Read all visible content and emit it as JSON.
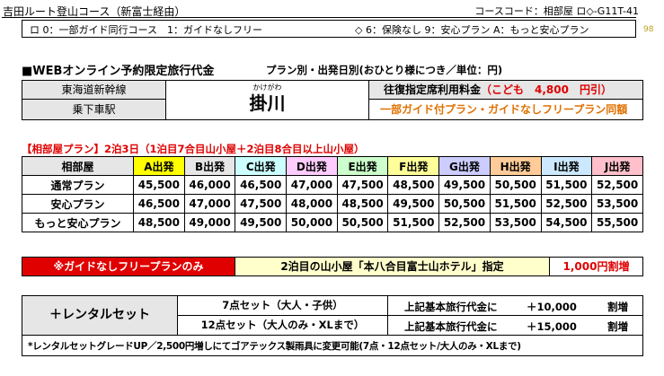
{
  "header": {
    "route_title": "吉田ルート登山コース（新富士経由）",
    "course_code": "コースコード：相部屋 ロ◇-G11T-41",
    "option_left": "ロ 0：一部ガイド同行コース　1：ガイドなしフリー",
    "option_right": "◇ 6：保険なし 9：安心プラン A：もっと安心プラン",
    "side_number": "98"
  },
  "section": {
    "title": "■WEBオンライン予約限定旅行代金",
    "subtitle": "プラン別・出発日別(おひとり様につき／単位：円)"
  },
  "station": {
    "line_label": "東海道新幹線",
    "board_label": "乗下車駅",
    "station_ruby": "かけがわ",
    "station_name": "掛川",
    "fare_label": "往復指定席利用料金",
    "child_fare": "（こども　4,800　円引）",
    "plan_note": "一部ガイド付プラン・ガイドなしフリープラン同額"
  },
  "table": {
    "caption": "【相部屋プラン】2泊3日（1泊目7合目山小屋＋2泊目8合目以上山小屋）",
    "corner": "相部屋",
    "columns": [
      {
        "label": "A出発",
        "color": "#ffff00"
      },
      {
        "label": "B出発",
        "color": "#e6e6e6"
      },
      {
        "label": "C出発",
        "color": "#ccffff"
      },
      {
        "label": "D出発",
        "color": "#ffccff"
      },
      {
        "label": "E出発",
        "color": "#ccffcc"
      },
      {
        "label": "F出発",
        "color": "#ffff99"
      },
      {
        "label": "G出発",
        "color": "#ccccff"
      },
      {
        "label": "H出発",
        "color": "#ffcc99"
      },
      {
        "label": "I出発",
        "color": "#cce8ff"
      },
      {
        "label": "J出発",
        "color": "#ffc0cb"
      }
    ],
    "rows": [
      {
        "label": "通常プラン",
        "values": [
          "45,500",
          "46,000",
          "46,500",
          "47,000",
          "47,500",
          "48,500",
          "49,500",
          "50,500",
          "51,500",
          "52,500"
        ]
      },
      {
        "label": "安心プラン",
        "values": [
          "46,500",
          "47,000",
          "47,500",
          "48,000",
          "48,500",
          "49,500",
          "50,500",
          "51,500",
          "52,500",
          "53,500"
        ]
      },
      {
        "label": "もっと安心プラン",
        "values": [
          "48,500",
          "49,000",
          "49,500",
          "50,000",
          "50,500",
          "51,500",
          "52,500",
          "53,500",
          "54,500",
          "55,500"
        ]
      }
    ]
  },
  "guide_free": {
    "label": "※ガイドなしフリープランのみ",
    "hotel": "2泊目の山小屋「本八合目富士山ホテル」指定",
    "surcharge": "1,000円割増"
  },
  "rental": {
    "title": "＋レンタルセット",
    "items": [
      {
        "name": "7点セット（大人・子供）",
        "base": "上記基本旅行代金に",
        "price": "＋10,000",
        "unit": "割増"
      },
      {
        "name": "12点セット（大人のみ・XLまで）",
        "base": "上記基本旅行代金に",
        "price": "＋15,000",
        "unit": "割増"
      }
    ],
    "note": "*レンタルセットグレードUP／2,500円増しにてゴアテックス製雨具に変更可能(7点・12点セット/大人のみ・XLまで)"
  }
}
